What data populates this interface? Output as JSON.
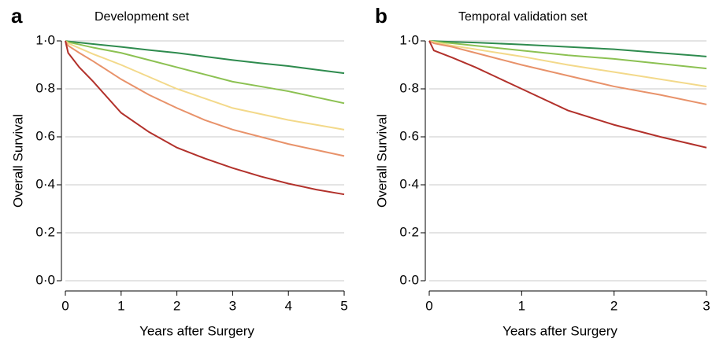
{
  "chart_data": [
    {
      "type": "line",
      "label": "a",
      "title": "Development set",
      "xlabel": "Years after Surgery",
      "ylabel": "Overall Survival",
      "x": [
        0,
        0.05,
        0.25,
        0.5,
        1,
        1.5,
        2,
        2.5,
        3,
        3.5,
        4,
        4.5,
        5
      ],
      "series": [
        {
          "color": "#2e8b4e",
          "values": [
            1,
            0.998,
            0.993,
            0.987,
            0.975,
            0.962,
            0.95,
            0.935,
            0.92,
            0.907,
            0.895,
            0.88,
            0.865
          ]
        },
        {
          "color": "#8cc152",
          "values": [
            1,
            0.995,
            0.985,
            0.972,
            0.95,
            0.92,
            0.89,
            0.86,
            0.83,
            0.81,
            0.79,
            0.765,
            0.74
          ]
        },
        {
          "color": "#f3d98a",
          "values": [
            1,
            0.99,
            0.97,
            0.945,
            0.9,
            0.85,
            0.8,
            0.76,
            0.72,
            0.695,
            0.67,
            0.65,
            0.63
          ]
        },
        {
          "color": "#e8926a",
          "values": [
            1,
            0.98,
            0.95,
            0.915,
            0.84,
            0.775,
            0.72,
            0.67,
            0.63,
            0.6,
            0.57,
            0.545,
            0.52
          ]
        },
        {
          "color": "#b2312b",
          "values": [
            1,
            0.95,
            0.89,
            0.83,
            0.7,
            0.62,
            0.555,
            0.51,
            0.47,
            0.435,
            0.405,
            0.38,
            0.36
          ]
        }
      ],
      "xlim": [
        0,
        5
      ],
      "xticks": [
        0,
        1,
        2,
        3,
        4,
        5
      ],
      "ylim": [
        0,
        1
      ],
      "yticks": [
        {
          "value": 0,
          "label": "0·0"
        },
        {
          "value": 0.2,
          "label": "0·2"
        },
        {
          "value": 0.4,
          "label": "0·4"
        },
        {
          "value": 0.6,
          "label": "0·6"
        },
        {
          "value": 0.8,
          "label": "0·8"
        },
        {
          "value": 1,
          "label": "1·0"
        }
      ],
      "grid": true
    },
    {
      "type": "line",
      "label": "b",
      "title": "Temporal validation set",
      "xlabel": "Years after Surgery",
      "ylabel": "Overall Survival",
      "x": [
        0,
        0.05,
        0.25,
        0.5,
        1,
        1.5,
        2,
        2.5,
        3
      ],
      "series": [
        {
          "color": "#2e8b4e",
          "values": [
            1,
            0.999,
            0.996,
            0.993,
            0.985,
            0.975,
            0.965,
            0.95,
            0.935
          ]
        },
        {
          "color": "#8cc152",
          "values": [
            1,
            0.997,
            0.99,
            0.98,
            0.96,
            0.94,
            0.925,
            0.905,
            0.885
          ]
        },
        {
          "color": "#f3d98a",
          "values": [
            1,
            0.995,
            0.98,
            0.965,
            0.935,
            0.9,
            0.87,
            0.84,
            0.81
          ]
        },
        {
          "color": "#e8926a",
          "values": [
            1,
            0.99,
            0.975,
            0.95,
            0.9,
            0.855,
            0.81,
            0.775,
            0.735
          ]
        },
        {
          "color": "#b2312b",
          "values": [
            1,
            0.96,
            0.93,
            0.89,
            0.8,
            0.71,
            0.65,
            0.6,
            0.555
          ]
        }
      ],
      "xlim": [
        0,
        3
      ],
      "xticks": [
        0,
        1,
        2,
        3
      ],
      "ylim": [
        0,
        1
      ],
      "yticks": [
        {
          "value": 0,
          "label": "0·0"
        },
        {
          "value": 0.2,
          "label": "0·2"
        },
        {
          "value": 0.4,
          "label": "0·4"
        },
        {
          "value": 0.6,
          "label": "0·6"
        },
        {
          "value": 0.8,
          "label": "0·8"
        },
        {
          "value": 1,
          "label": "1·0"
        }
      ],
      "grid": true
    }
  ]
}
